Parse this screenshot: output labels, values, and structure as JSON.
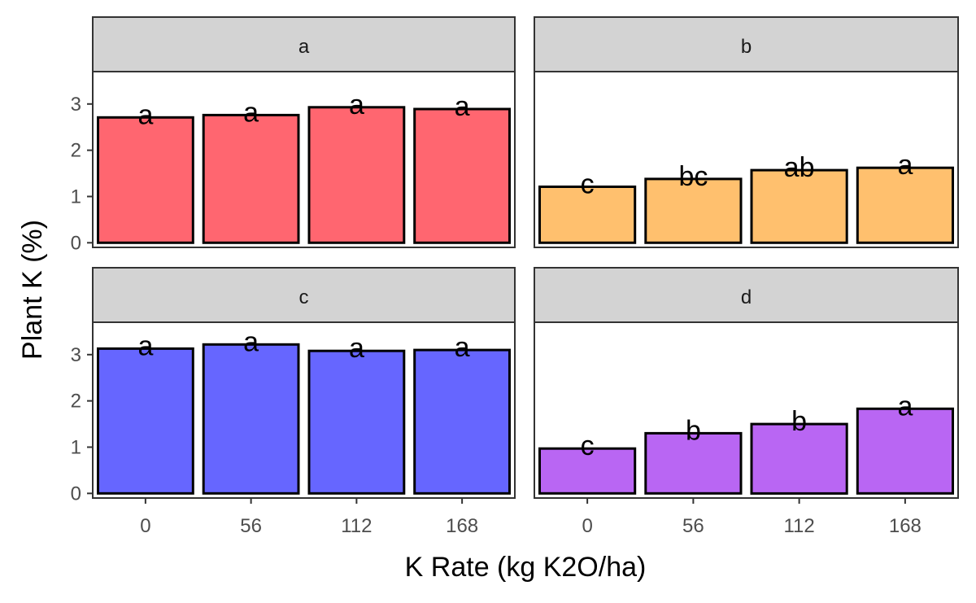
{
  "chart_data": {
    "type": "bar",
    "xlabel": "K Rate (kg K2O/ha)",
    "ylabel": "Plant K (%)",
    "categories": [
      "0",
      "56",
      "112",
      "168"
    ],
    "y_ticks": [
      "0",
      "1",
      "2",
      "3"
    ],
    "ylim": [
      -0.1,
      3.7
    ],
    "layout": "2x2 facets",
    "panels": [
      {
        "strip": "a",
        "values": [
          2.71,
          2.76,
          2.93,
          2.89
        ],
        "labels": [
          "a",
          "a",
          "a",
          "a"
        ],
        "color": "#ff6670"
      },
      {
        "strip": "b",
        "values": [
          1.21,
          1.38,
          1.57,
          1.62
        ],
        "labels": [
          "c",
          "bc",
          "ab",
          "a"
        ],
        "color": "#ffc06e"
      },
      {
        "strip": "c",
        "values": [
          3.13,
          3.22,
          3.08,
          3.1
        ],
        "labels": [
          "a",
          "a",
          "a",
          "a"
        ],
        "color": "#6666ff"
      },
      {
        "strip": "d",
        "values": [
          0.97,
          1.3,
          1.5,
          1.83
        ],
        "labels": [
          "c",
          "b",
          "b",
          "a"
        ],
        "color": "#b966f3"
      }
    ]
  }
}
